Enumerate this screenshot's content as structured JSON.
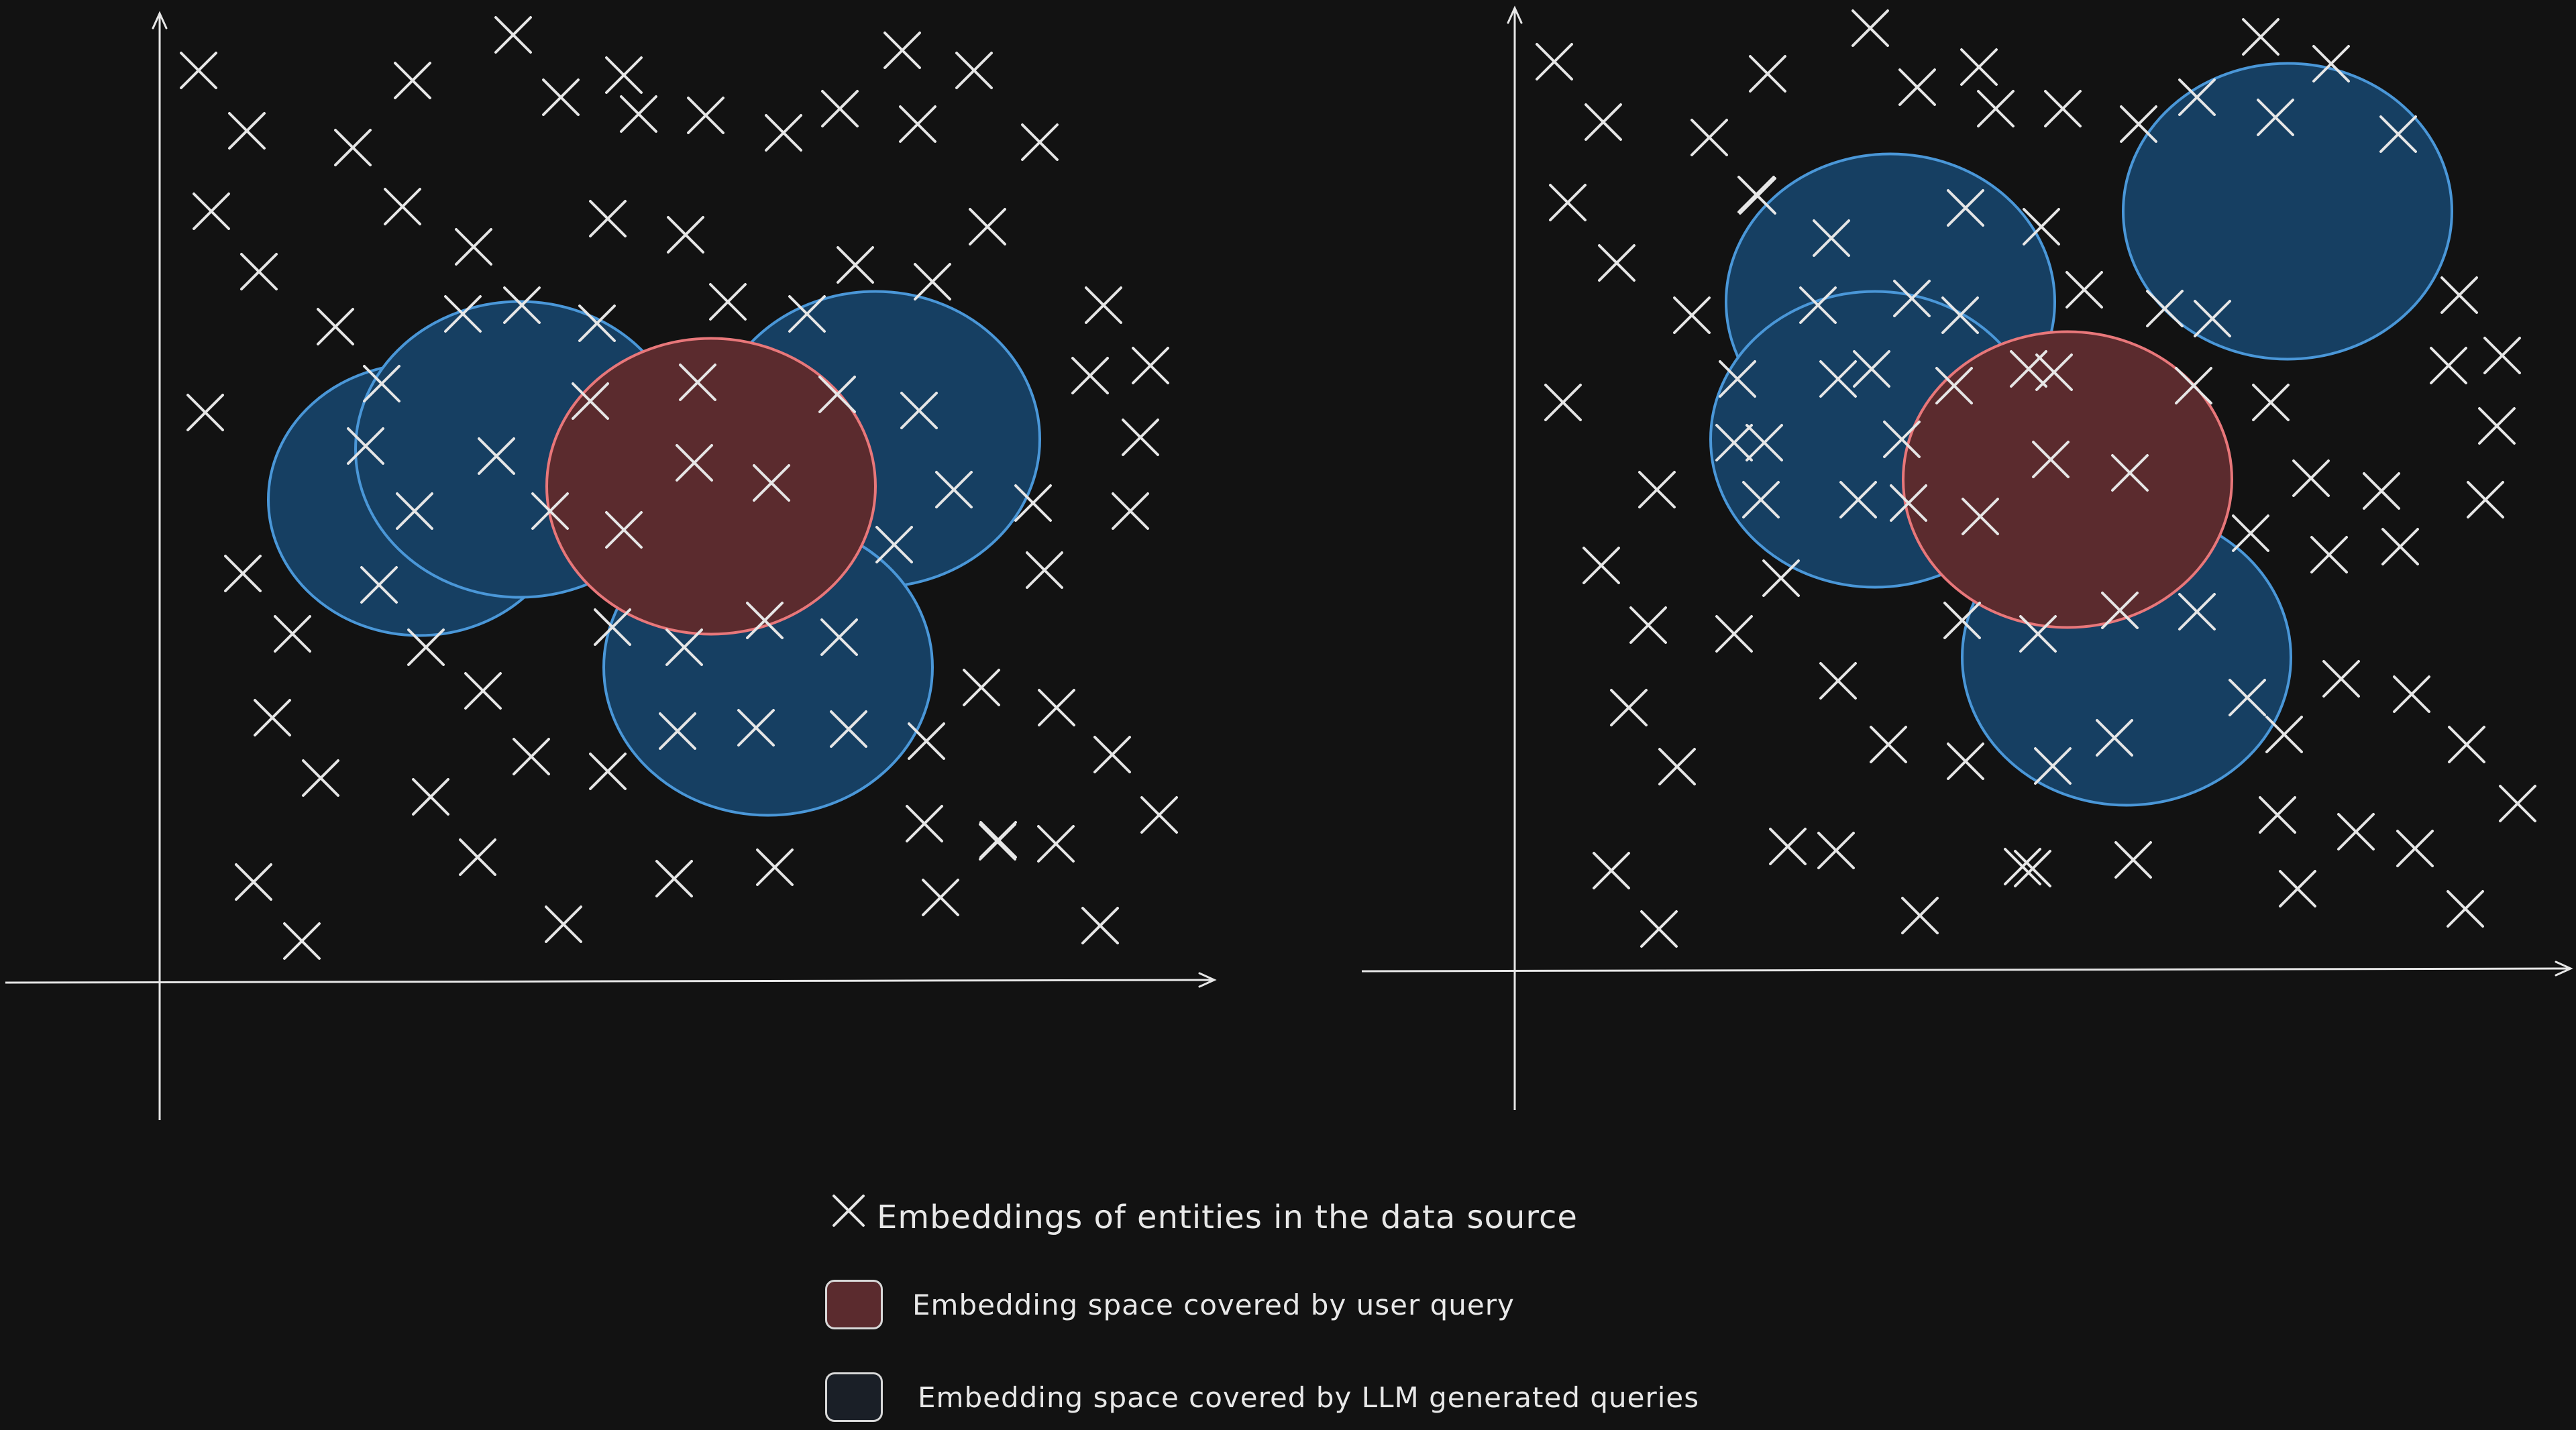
{
  "colors": {
    "background": "#121212",
    "axis": "#e6e6e6",
    "marker": "#e6e6e6",
    "query_fill": "#5b2b2e",
    "query_stroke": "#e8777a",
    "llm_fill": "#163f62",
    "llm_stroke": "#4a97d8",
    "legend_llm_fill": "#1a1f27"
  },
  "legend": {
    "entities_label": "Embeddings of entities in the data source",
    "user_query_label": "Embedding space covered by user query",
    "llm_queries_label": "Embedding space covered by LLM generated queries",
    "entities_icon": "cross-marker-icon"
  }
}
